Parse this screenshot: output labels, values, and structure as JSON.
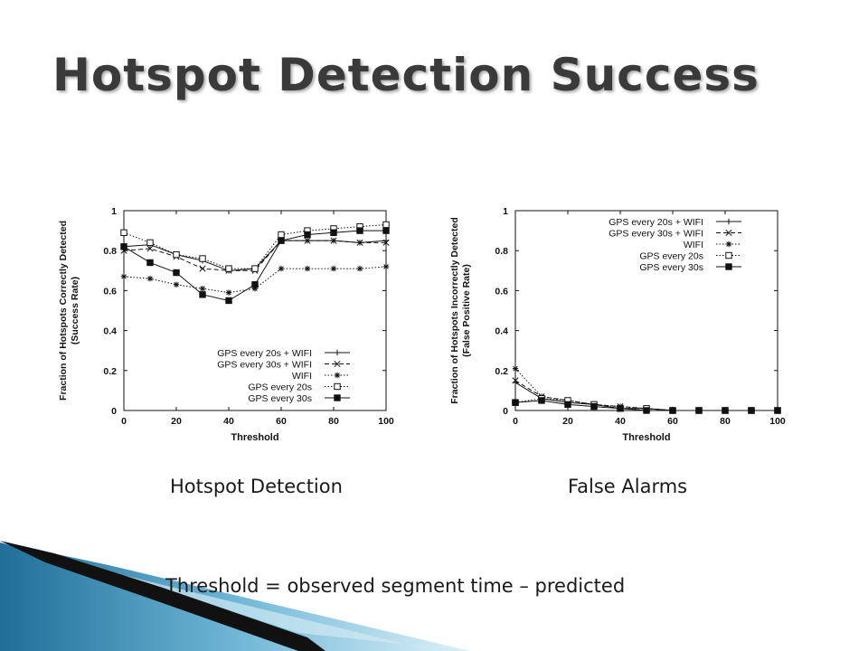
{
  "slide": {
    "title": "Hotspot Detection Success",
    "caption_left": "Hotspot Detection",
    "caption_right": "False Alarms",
    "footnote": "Threshold = observed segment time – predicted"
  },
  "chart_data": [
    {
      "type": "line",
      "title": "",
      "xlabel": "Threshold",
      "ylabel": "Fraction of Hotspots Correctly Detected",
      "ylabel2": "(Success Rate)",
      "xlim": [
        0,
        100
      ],
      "ylim": [
        0,
        1
      ],
      "xticks": [
        "0",
        "20",
        "40",
        "60",
        "80",
        "100"
      ],
      "yticks": [
        "0",
        "0.2",
        "0.4",
        "0.6",
        "0.8",
        "1"
      ],
      "legend_position": "bottom-right",
      "x": [
        0,
        10,
        20,
        30,
        40,
        50,
        60,
        70,
        80,
        90,
        100
      ],
      "series": [
        {
          "name": "GPS every 20s + WIFI",
          "marker": "plus",
          "dash": "solid",
          "values": [
            0.82,
            0.83,
            0.78,
            0.75,
            0.7,
            0.71,
            0.85,
            0.85,
            0.85,
            0.84,
            0.85
          ]
        },
        {
          "name": "GPS every 30s + WIFI",
          "marker": "cross",
          "dash": "dashed",
          "values": [
            0.8,
            0.81,
            0.77,
            0.71,
            0.7,
            0.7,
            0.85,
            0.85,
            0.85,
            0.84,
            0.84
          ]
        },
        {
          "name": "WIFI",
          "marker": "star",
          "dash": "dotted",
          "values": [
            0.67,
            0.66,
            0.63,
            0.61,
            0.59,
            0.61,
            0.71,
            0.71,
            0.71,
            0.71,
            0.72
          ]
        },
        {
          "name": "GPS every 20s",
          "marker": "square-open",
          "dash": "dotted",
          "values": [
            0.89,
            0.84,
            0.78,
            0.76,
            0.71,
            0.71,
            0.88,
            0.9,
            0.91,
            0.92,
            0.93
          ]
        },
        {
          "name": "GPS every 30s",
          "marker": "square-filled",
          "dash": "solid",
          "values": [
            0.82,
            0.74,
            0.69,
            0.58,
            0.55,
            0.63,
            0.85,
            0.88,
            0.89,
            0.9,
            0.9
          ]
        }
      ]
    },
    {
      "type": "line",
      "title": "",
      "xlabel": "Threshold",
      "ylabel": "Fraction of Hotspots Incorrectly Detected",
      "ylabel2": "(False Positive Rate)",
      "xlim": [
        0,
        100
      ],
      "ylim": [
        0,
        1
      ],
      "xticks": [
        "0",
        "20",
        "40",
        "60",
        "80",
        "100"
      ],
      "yticks": [
        "0",
        "0.2",
        "0.4",
        "0.6",
        "0.8",
        "1"
      ],
      "legend_position": "top-right",
      "x": [
        0,
        10,
        20,
        30,
        40,
        50,
        60,
        70,
        80,
        90,
        100
      ],
      "series": [
        {
          "name": "GPS every 20s + WIFI",
          "marker": "plus",
          "dash": "solid",
          "values": [
            0.14,
            0.06,
            0.04,
            0.03,
            0.01,
            0.01,
            0.0,
            0.0,
            0.0,
            0.0,
            0.0
          ]
        },
        {
          "name": "GPS every 30s + WIFI",
          "marker": "cross",
          "dash": "dashed",
          "values": [
            0.15,
            0.07,
            0.05,
            0.03,
            0.02,
            0.01,
            0.0,
            0.0,
            0.0,
            0.0,
            0.0
          ]
        },
        {
          "name": "WIFI",
          "marker": "star",
          "dash": "dotted",
          "values": [
            0.21,
            0.07,
            0.05,
            0.03,
            0.02,
            0.01,
            0.0,
            0.0,
            0.0,
            0.0,
            0.0
          ]
        },
        {
          "name": "GPS every 20s",
          "marker": "square-open",
          "dash": "dotted",
          "values": [
            0.04,
            0.06,
            0.05,
            0.03,
            0.01,
            0.01,
            0.0,
            0.0,
            0.0,
            0.0,
            0.0
          ]
        },
        {
          "name": "GPS every 30s",
          "marker": "square-filled",
          "dash": "solid",
          "values": [
            0.04,
            0.05,
            0.03,
            0.02,
            0.01,
            0.0,
            0.0,
            0.0,
            0.0,
            0.0,
            0.0
          ]
        }
      ]
    }
  ],
  "decor": {
    "swoosh_colors": [
      "#1f6f99",
      "#6fb6d6",
      "#bfe3f1",
      "#111111"
    ]
  }
}
